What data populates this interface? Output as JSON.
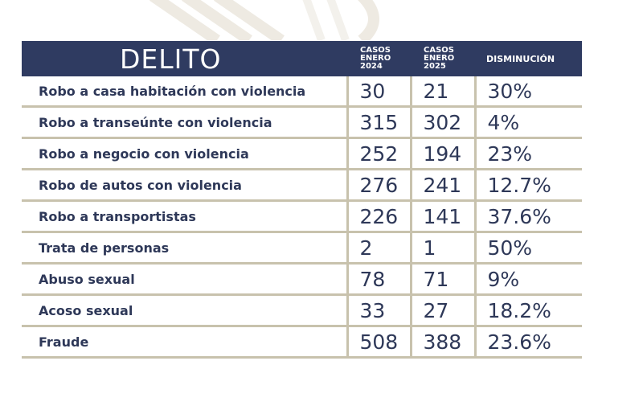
{
  "table": {
    "headers": {
      "crime": "DELITO",
      "cases_2024": [
        "CASOS",
        "ENERO",
        "2024"
      ],
      "cases_2025": [
        "CASOS",
        "ENERO",
        "2025"
      ],
      "decrease": "DISMINUCIÓN"
    },
    "rows": [
      {
        "crime": "Robo a casa habitación con violencia",
        "cases_2024": "30",
        "cases_2025": "21",
        "decrease": "30%"
      },
      {
        "crime": "Robo a transeúnte con violencia",
        "cases_2024": "315",
        "cases_2025": "302",
        "decrease": "4%"
      },
      {
        "crime": "Robo a negocio con violencia",
        "cases_2024": "252",
        "cases_2025": "194",
        "decrease": "23%"
      },
      {
        "crime": "Robo de autos con violencia",
        "cases_2024": "276",
        "cases_2025": "241",
        "decrease": "12.7%"
      },
      {
        "crime": "Robo a transportistas",
        "cases_2024": "226",
        "cases_2025": "141",
        "decrease": "37.6%"
      },
      {
        "crime": "Trata de personas",
        "cases_2024": "2",
        "cases_2025": "1",
        "decrease": "50%"
      },
      {
        "crime": "Abuso sexual",
        "cases_2024": "78",
        "cases_2025": "71",
        "decrease": "9%"
      },
      {
        "crime": "Acoso sexual",
        "cases_2024": "33",
        "cases_2025": "27",
        "decrease": "18.2%"
      },
      {
        "crime": "Fraude",
        "cases_2024": "508",
        "cases_2025": "388",
        "decrease": "23.6%"
      }
    ]
  },
  "colors": {
    "header_bg": "#2f3b61",
    "header_text": "#ffffff",
    "body_text": "#2e3858",
    "rule": "#c8c2ad"
  },
  "chart_data": {
    "type": "table",
    "columns": [
      "DELITO",
      "CASOS ENERO 2024",
      "CASOS ENERO 2025",
      "DISMINUCIÓN"
    ],
    "rows": [
      [
        "Robo a casa habitación con violencia",
        30,
        21,
        "30%"
      ],
      [
        "Robo a transeúnte con violencia",
        315,
        302,
        "4%"
      ],
      [
        "Robo a negocio con violencia",
        252,
        194,
        "23%"
      ],
      [
        "Robo de autos con violencia",
        276,
        241,
        "12.7%"
      ],
      [
        "Robo a transportistas",
        226,
        141,
        "37.6%"
      ],
      [
        "Trata de personas",
        2,
        1,
        "50%"
      ],
      [
        "Abuso sexual",
        78,
        71,
        "9%"
      ],
      [
        "Acoso sexual",
        33,
        27,
        "18.2%"
      ],
      [
        "Fraude",
        508,
        388,
        "23.6%"
      ]
    ]
  }
}
